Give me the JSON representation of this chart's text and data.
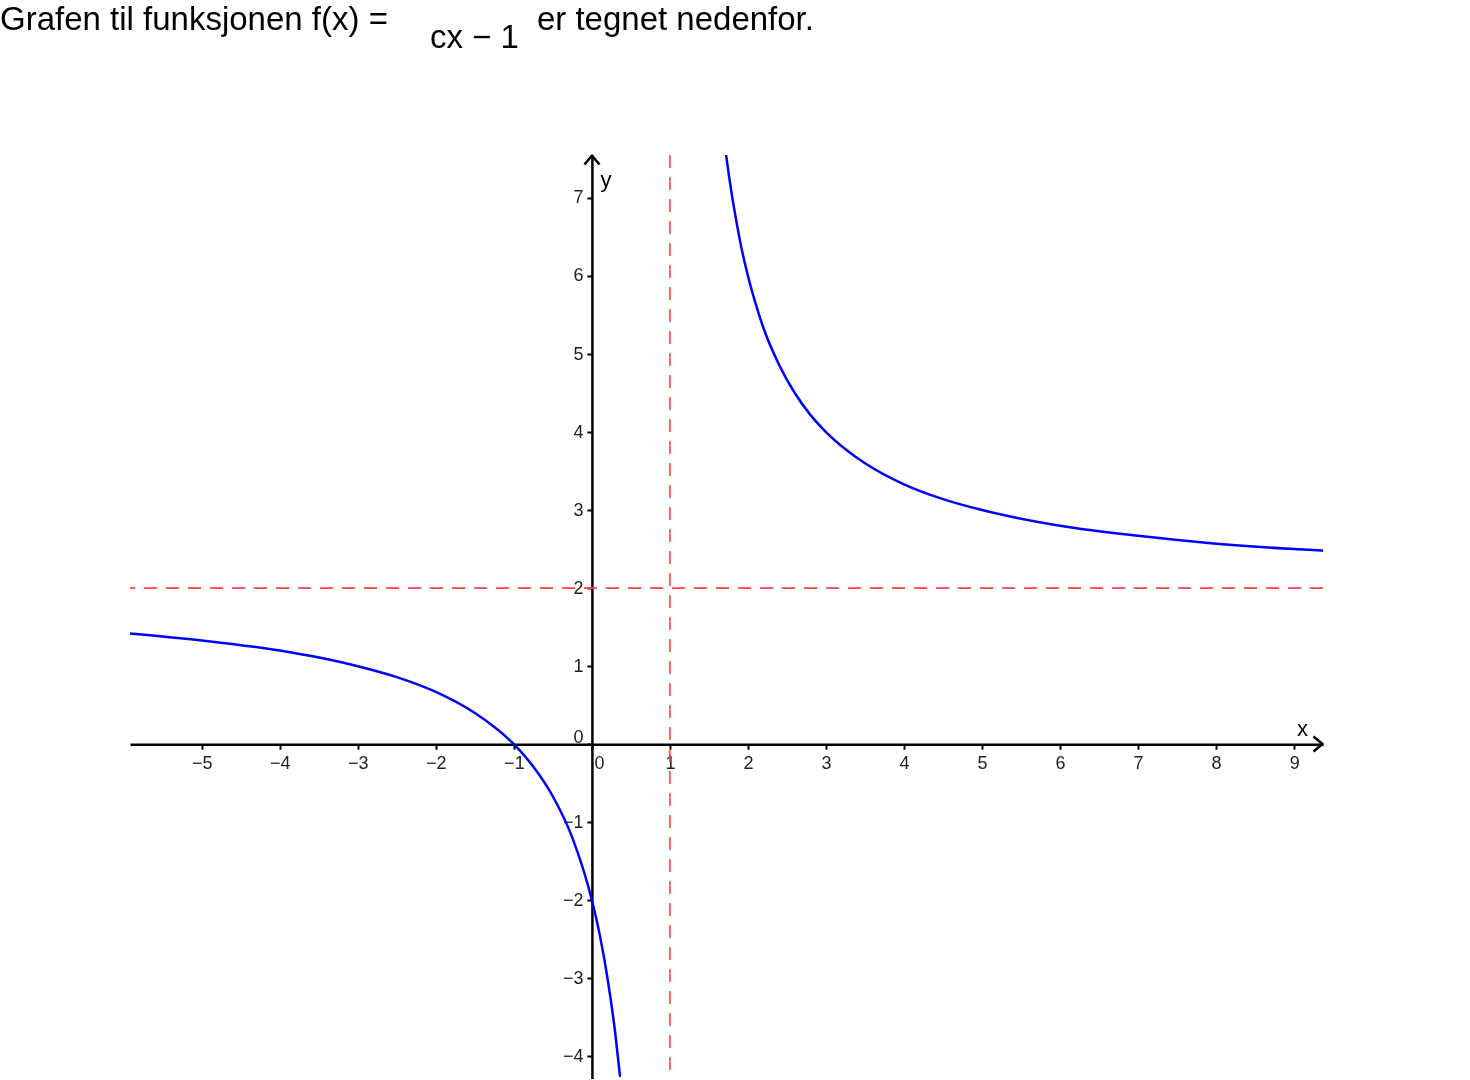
{
  "chart_data": {
    "type": "line",
    "title": "Grafen til funksjonen f(x) =",
    "annotations": [
      "cx − 1",
      "er tegnet nedenfor."
    ],
    "xlabel": "x",
    "ylabel": "y",
    "xlim": [
      -5.92,
      9.37
    ],
    "ylim": [
      -4.29,
      7.55
    ],
    "xticks": [
      -5,
      -4,
      -3,
      -2,
      -1,
      0,
      1,
      2,
      3,
      4,
      5,
      6,
      7,
      8,
      9
    ],
    "yticks": [
      -4,
      -3,
      -2,
      -1,
      0,
      1,
      2,
      3,
      4,
      5,
      6,
      7
    ],
    "grid": false,
    "series": [
      {
        "color": "#0000ff",
        "x": [
          -5.92,
          -5,
          -4,
          -3,
          -2.5,
          -2,
          -1.5,
          -1.25,
          -1,
          -0.75,
          -0.5,
          -0.25,
          0,
          0.1,
          0.2,
          0.3,
          0.36
        ],
        "values": [
          1.42,
          1.33,
          1.2,
          1,
          0.86,
          0.67,
          0.4,
          0.22,
          0,
          -0.29,
          -0.67,
          -1.2,
          -2,
          -2.44,
          -3,
          -3.71,
          -4.25
        ]
      },
      {
        "color": "#0000ff",
        "x": [
          1.72,
          1.76,
          1.8,
          1.85,
          1.9,
          2,
          2.1,
          2.2,
          2.4,
          2.6,
          2.8,
          3,
          3.25,
          3.5,
          4,
          4.5,
          5,
          6,
          7,
          8,
          9,
          9.37
        ],
        "values": [
          7.55,
          7.26,
          7,
          6.71,
          6.44,
          6,
          5.64,
          5.33,
          4.86,
          4.5,
          4.22,
          4,
          3.78,
          3.6,
          3.33,
          3.14,
          3,
          2.8,
          2.67,
          2.57,
          2.5,
          2.48
        ]
      }
    ],
    "ref_lines": [
      {
        "axis": "x",
        "value": 1,
        "color": "#ff4040",
        "line_style": "dashed"
      },
      {
        "axis": "y",
        "value": 2,
        "color": "#ff4040",
        "line_style": "dashed"
      }
    ]
  }
}
